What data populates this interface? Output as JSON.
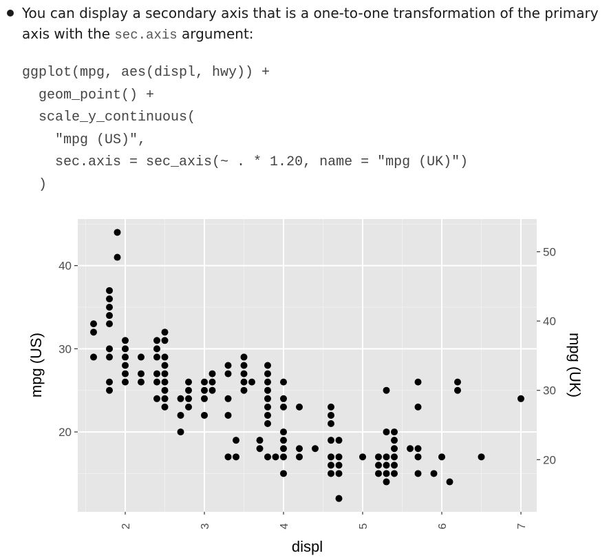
{
  "text": {
    "lead": "You can display a secondary axis that is a one-to-one transformation of the primary axis with the ",
    "code_inline": "sec.axis",
    "tail": " argument:"
  },
  "code_lines": [
    "ggplot(mpg, aes(displ, hwy)) +",
    "  geom_point() +",
    "  scale_y_continuous(",
    "    \"mpg (US)\",",
    "    sec.axis = sec_axis(~ . * 1.20, name = \"mpg (UK)\")",
    "  )"
  ],
  "colors": {
    "panel_bg": "#e6e6e6",
    "grid_major": "#ffffff",
    "grid_minor": "#f0f0f0",
    "point": "#000000",
    "tick_text": "#4d4d4d"
  },
  "chart_data": {
    "type": "scatter",
    "xlabel": "displ",
    "ylabel": "mpg (US)",
    "y2label": "mpg (UK)",
    "xlim": [
      1.4,
      7.2
    ],
    "ylim": [
      10.4,
      45.6
    ],
    "y2_transform": "y * 1.20",
    "x_ticks": [
      2,
      3,
      4,
      5,
      6,
      7
    ],
    "y_ticks": [
      20,
      30,
      40
    ],
    "y2_ticks": [
      20,
      30,
      40,
      50
    ],
    "grid": true,
    "points": [
      [
        1.6,
        33
      ],
      [
        1.6,
        32
      ],
      [
        1.6,
        29
      ],
      [
        1.8,
        37
      ],
      [
        1.8,
        36
      ],
      [
        1.8,
        35
      ],
      [
        1.8,
        34
      ],
      [
        1.8,
        33
      ],
      [
        1.8,
        30
      ],
      [
        1.8,
        29
      ],
      [
        1.8,
        26
      ],
      [
        1.8,
        25
      ],
      [
        1.9,
        44
      ],
      [
        1.9,
        41
      ],
      [
        2.0,
        31
      ],
      [
        2.0,
        30
      ],
      [
        2.0,
        29
      ],
      [
        2.0,
        28
      ],
      [
        2.0,
        27
      ],
      [
        2.0,
        26
      ],
      [
        2.2,
        29
      ],
      [
        2.2,
        27
      ],
      [
        2.2,
        26
      ],
      [
        2.4,
        31
      ],
      [
        2.4,
        30
      ],
      [
        2.4,
        29
      ],
      [
        2.4,
        27
      ],
      [
        2.4,
        26
      ],
      [
        2.4,
        24
      ],
      [
        2.5,
        32
      ],
      [
        2.5,
        31
      ],
      [
        2.5,
        29
      ],
      [
        2.5,
        28
      ],
      [
        2.5,
        27
      ],
      [
        2.5,
        26
      ],
      [
        2.5,
        25
      ],
      [
        2.5,
        24
      ],
      [
        2.5,
        23
      ],
      [
        2.7,
        24
      ],
      [
        2.7,
        22
      ],
      [
        2.7,
        20
      ],
      [
        2.8,
        26
      ],
      [
        2.8,
        25
      ],
      [
        2.8,
        24
      ],
      [
        2.8,
        23
      ],
      [
        3.0,
        26
      ],
      [
        3.0,
        25
      ],
      [
        3.0,
        24
      ],
      [
        3.0,
        22
      ],
      [
        3.1,
        27
      ],
      [
        3.1,
        26
      ],
      [
        3.1,
        25
      ],
      [
        3.3,
        28
      ],
      [
        3.3,
        27
      ],
      [
        3.3,
        24
      ],
      [
        3.3,
        22
      ],
      [
        3.3,
        17
      ],
      [
        3.4,
        19
      ],
      [
        3.4,
        17
      ],
      [
        3.5,
        29
      ],
      [
        3.5,
        28
      ],
      [
        3.5,
        27
      ],
      [
        3.5,
        26
      ],
      [
        3.5,
        25
      ],
      [
        3.6,
        26
      ],
      [
        3.7,
        19
      ],
      [
        3.7,
        18
      ],
      [
        3.8,
        28
      ],
      [
        3.8,
        27
      ],
      [
        3.8,
        26
      ],
      [
        3.8,
        25
      ],
      [
        3.8,
        24
      ],
      [
        3.8,
        23
      ],
      [
        3.8,
        22
      ],
      [
        3.8,
        21
      ],
      [
        3.8,
        17
      ],
      [
        3.9,
        17
      ],
      [
        4.0,
        26
      ],
      [
        4.0,
        24
      ],
      [
        4.0,
        23
      ],
      [
        4.0,
        20
      ],
      [
        4.0,
        19
      ],
      [
        4.0,
        18
      ],
      [
        4.0,
        17
      ],
      [
        4.0,
        15
      ],
      [
        4.2,
        23
      ],
      [
        4.2,
        18
      ],
      [
        4.2,
        17
      ],
      [
        4.4,
        18
      ],
      [
        4.6,
        23
      ],
      [
        4.6,
        22
      ],
      [
        4.6,
        21
      ],
      [
        4.6,
        19
      ],
      [
        4.6,
        17
      ],
      [
        4.6,
        16
      ],
      [
        4.6,
        15
      ],
      [
        4.7,
        19
      ],
      [
        4.7,
        17
      ],
      [
        4.7,
        16
      ],
      [
        4.7,
        15
      ],
      [
        4.7,
        12
      ],
      [
        5.0,
        17
      ],
      [
        5.2,
        17
      ],
      [
        5.2,
        16
      ],
      [
        5.2,
        15
      ],
      [
        5.3,
        25
      ],
      [
        5.3,
        20
      ],
      [
        5.3,
        17
      ],
      [
        5.3,
        16
      ],
      [
        5.3,
        15
      ],
      [
        5.3,
        14
      ],
      [
        5.4,
        20
      ],
      [
        5.4,
        19
      ],
      [
        5.4,
        18
      ],
      [
        5.4,
        17
      ],
      [
        5.4,
        16
      ],
      [
        5.4,
        15
      ],
      [
        5.6,
        18
      ],
      [
        5.7,
        26
      ],
      [
        5.7,
        23
      ],
      [
        5.7,
        18
      ],
      [
        5.7,
        17
      ],
      [
        5.7,
        15
      ],
      [
        5.9,
        15
      ],
      [
        6.0,
        17
      ],
      [
        6.1,
        14
      ],
      [
        6.2,
        26
      ],
      [
        6.2,
        25
      ],
      [
        6.5,
        17
      ],
      [
        7.0,
        24
      ]
    ]
  }
}
